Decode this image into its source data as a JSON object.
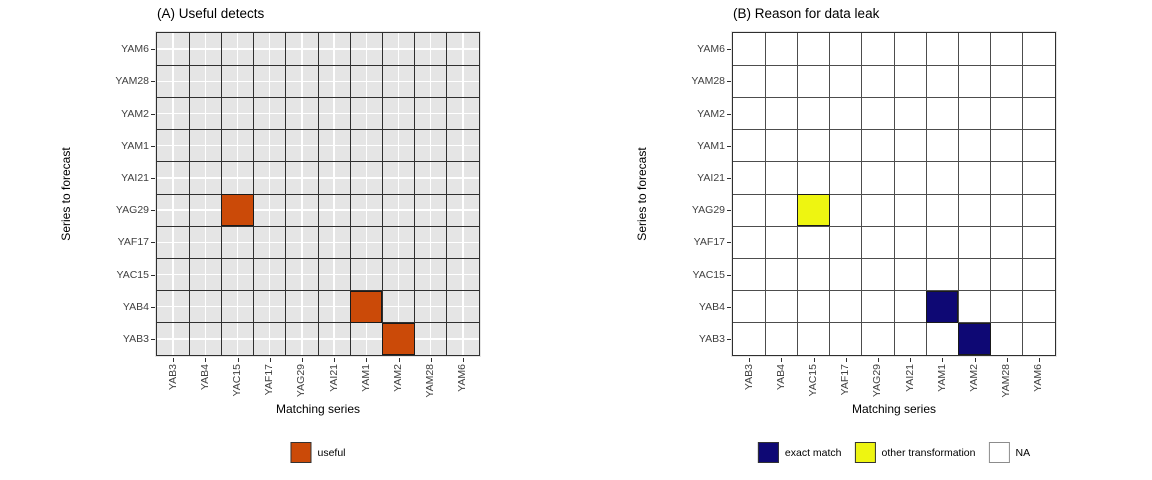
{
  "figure": {
    "background": "#FFFFFF",
    "axis_text_color": "#404040",
    "title_color": "#000000"
  },
  "chart_data": [
    {
      "type": "heatmap",
      "panel_label": "A",
      "title": "(A) Useful detects",
      "xlabel": "Matching series",
      "ylabel": "Series to forecast",
      "x_categories": [
        "YAB3",
        "YAB4",
        "YAC15",
        "YAF17",
        "YAG29",
        "YAI21",
        "YAM1",
        "YAM2",
        "YAM28",
        "YAM6"
      ],
      "y_categories_top_to_bottom": [
        "YAM6",
        "YAM28",
        "YAM2",
        "YAM1",
        "YAI21",
        "YAG29",
        "YAF17",
        "YAC15",
        "YAB4",
        "YAB3"
      ],
      "cells": [
        {
          "row": "YAG29",
          "col": "YAC15",
          "value": "useful"
        },
        {
          "row": "YAB4",
          "col": "YAM1",
          "value": "useful"
        },
        {
          "row": "YAB3",
          "col": "YAM2",
          "value": "useful"
        }
      ],
      "legend": [
        {
          "label": "useful",
          "color": "#CB4A08",
          "border": "#333333"
        }
      ],
      "style": {
        "panel_bg": "#E5E5E5",
        "panel_margin_bg": "#E6E6E6",
        "grid_major": "#FFFFFF",
        "cell_line": "#2F2F2F",
        "draw_major_grid": true
      }
    },
    {
      "type": "heatmap",
      "panel_label": "B",
      "title": "(B) Reason for data leak",
      "xlabel": "Matching series",
      "ylabel": "Series to forecast",
      "x_categories": [
        "YAB3",
        "YAB4",
        "YAC15",
        "YAF17",
        "YAG29",
        "YAI21",
        "YAM1",
        "YAM2",
        "YAM28",
        "YAM6"
      ],
      "y_categories_top_to_bottom": [
        "YAM6",
        "YAM28",
        "YAM2",
        "YAM1",
        "YAI21",
        "YAG29",
        "YAF17",
        "YAC15",
        "YAB4",
        "YAB3"
      ],
      "cells": [
        {
          "row": "YAG29",
          "col": "YAC15",
          "value": "other transformation"
        },
        {
          "row": "YAB4",
          "col": "YAM1",
          "value": "exact match"
        },
        {
          "row": "YAB3",
          "col": "YAM2",
          "value": "exact match"
        }
      ],
      "legend": [
        {
          "label": "exact match",
          "color": "#0E0874",
          "border": "#333333"
        },
        {
          "label": "other transformation",
          "color": "#EEF511",
          "border": "#333333"
        },
        {
          "label": "NA",
          "color": "#FFFFFF",
          "border": "#8C8C8C"
        }
      ],
      "style": {
        "panel_bg": "#FFFFFF",
        "panel_margin_bg": "#E6E6E6",
        "grid_major": "#FFFFFF",
        "cell_line": "#4D4D4D",
        "draw_major_grid": false
      }
    }
  ]
}
